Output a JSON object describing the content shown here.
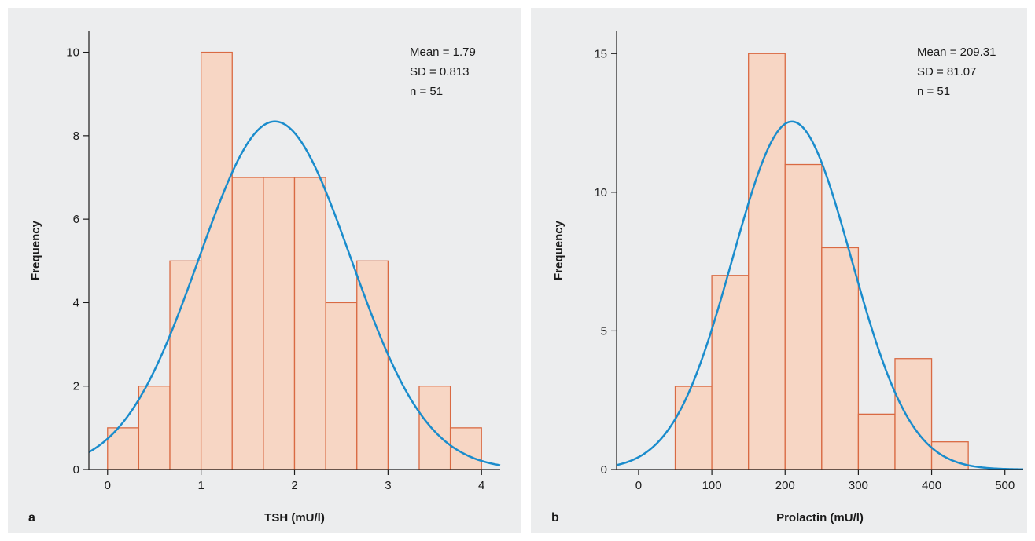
{
  "panels": [
    {
      "letter": "a",
      "stats": [
        "Mean = 1.79",
        "SD = 0.813",
        "n = 51"
      ]
    },
    {
      "letter": "b",
      "stats": [
        "Mean = 209.31",
        "SD = 81.07",
        "n = 51"
      ]
    }
  ],
  "chart_data": [
    {
      "type": "bar",
      "subtype": "histogram-with-normal-curve",
      "xlabel": "TSH (mU/l)",
      "ylabel": "Frequency",
      "xlim": [
        -0.2,
        4.2
      ],
      "ylim": [
        0,
        10.5
      ],
      "xticks": [
        0,
        1,
        2,
        3,
        4
      ],
      "yticks": [
        0,
        2,
        4,
        6,
        8,
        10
      ],
      "bin_width": 0.3333,
      "bins": [
        {
          "start": 0.0,
          "end": 0.3333,
          "count": 1
        },
        {
          "start": 0.3333,
          "end": 0.6667,
          "count": 2
        },
        {
          "start": 0.6667,
          "end": 1.0,
          "count": 5
        },
        {
          "start": 1.0,
          "end": 1.3333,
          "count": 10
        },
        {
          "start": 1.3333,
          "end": 1.6667,
          "count": 7
        },
        {
          "start": 1.6667,
          "end": 2.0,
          "count": 7
        },
        {
          "start": 2.0,
          "end": 2.3333,
          "count": 7
        },
        {
          "start": 2.3333,
          "end": 2.6667,
          "count": 4
        },
        {
          "start": 2.6667,
          "end": 3.0,
          "count": 5
        },
        {
          "start": 3.0,
          "end": 3.3333,
          "count": 0
        },
        {
          "start": 3.3333,
          "end": 3.6667,
          "count": 2
        },
        {
          "start": 3.6667,
          "end": 4.0,
          "count": 1
        }
      ],
      "normal_curve": {
        "mean": 1.79,
        "sd": 0.813,
        "n": 51
      },
      "bar_color": "#f7d6c4",
      "bar_edge_color": "#d96a43",
      "curve_color": "#1a8ccc"
    },
    {
      "type": "bar",
      "subtype": "histogram-with-normal-curve",
      "xlabel": "Prolactin (mU/l)",
      "ylabel": "Frequency",
      "xlim": [
        -30,
        525
      ],
      "ylim": [
        0,
        15.8
      ],
      "xticks": [
        0,
        100,
        200,
        300,
        400,
        500
      ],
      "yticks": [
        0,
        5,
        10,
        15
      ],
      "bin_width": 50,
      "bins": [
        {
          "start": 50,
          "end": 100,
          "count": 3
        },
        {
          "start": 100,
          "end": 150,
          "count": 7
        },
        {
          "start": 150,
          "end": 200,
          "count": 15
        },
        {
          "start": 200,
          "end": 250,
          "count": 11
        },
        {
          "start": 250,
          "end": 300,
          "count": 8
        },
        {
          "start": 300,
          "end": 350,
          "count": 2
        },
        {
          "start": 350,
          "end": 400,
          "count": 4
        },
        {
          "start": 400,
          "end": 450,
          "count": 1
        }
      ],
      "normal_curve": {
        "mean": 209.31,
        "sd": 81.07,
        "n": 51
      },
      "bar_color": "#f7d6c4",
      "bar_edge_color": "#d96a43",
      "curve_color": "#1a8ccc"
    }
  ]
}
